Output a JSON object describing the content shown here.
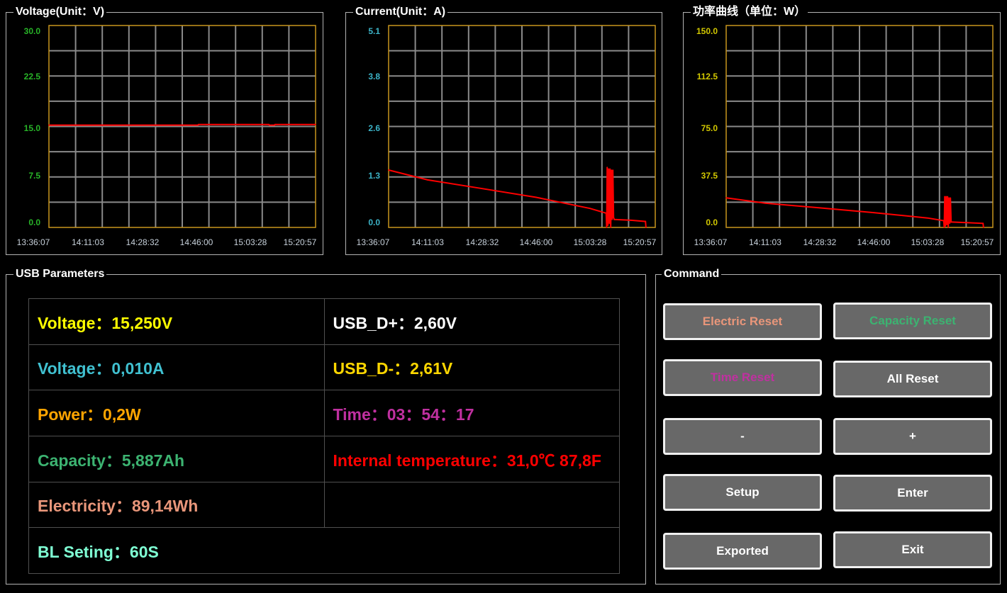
{
  "colors": {
    "plot_border": "#c8961e",
    "grid": "#8a8a8a",
    "line": "#ff0000",
    "x_tick": "#c8d2dc"
  },
  "chart_data": [
    {
      "type": "line",
      "title": "Voltage(Unit：V)",
      "ylim": [
        0,
        30
      ],
      "y_ticks": [
        "30.0",
        "22.5",
        "15.0",
        "7.5",
        "0.0"
      ],
      "x_ticks": [
        "13:36:07",
        "14:11:03",
        "14:28:32",
        "14:46:00",
        "15:03:28",
        "15:20:57"
      ],
      "grid": true,
      "tick_color": "#28b428",
      "series": [
        {
          "points": [
            [
              "13:46:00",
              15.2
            ],
            [
              "14:46:30",
              15.2
            ],
            [
              "14:46:40",
              15.3
            ],
            [
              "15:10:00",
              15.3
            ],
            [
              "15:10:10",
              15.2
            ],
            [
              "15:12:00",
              15.2
            ],
            [
              "15:12:10",
              15.3
            ],
            [
              "15:26:30",
              15.3
            ]
          ]
        }
      ]
    },
    {
      "type": "line",
      "title": "Current(Unit：A)",
      "ylim": [
        0,
        5.1
      ],
      "y_ticks": [
        "5.1",
        "3.8",
        "2.6",
        "1.3",
        "0.0"
      ],
      "x_ticks": [
        "13:36:07",
        "14:11:03",
        "14:28:32",
        "14:46:00",
        "15:03:28",
        "15:20:57"
      ],
      "grid": true,
      "tick_color": "#3cb4c8",
      "series": [
        {
          "points": [
            [
              "13:46:00",
              1.45
            ],
            [
              "14:11:03",
              1.2
            ],
            [
              "14:28:32",
              0.98
            ],
            [
              "14:46:00",
              0.76
            ],
            [
              "15:03:28",
              0.48
            ],
            [
              "15:09:10",
              0.36
            ],
            [
              "15:09:20",
              0.0
            ],
            [
              "15:09:30",
              1.52
            ],
            [
              "15:09:45",
              0.05
            ],
            [
              "15:10:00",
              1.48
            ],
            [
              "15:10:15",
              0.1
            ],
            [
              "15:10:30",
              1.48
            ],
            [
              "15:10:45",
              0.0
            ],
            [
              "15:11:00",
              1.45
            ],
            [
              "15:11:15",
              0.2
            ],
            [
              "15:11:30",
              1.45
            ],
            [
              "15:11:45",
              0.25
            ],
            [
              "15:12:00",
              0.2
            ],
            [
              "15:18:00",
              0.18
            ],
            [
              "15:23:00",
              0.15
            ],
            [
              "15:23:10",
              0.0
            ]
          ]
        }
      ]
    },
    {
      "type": "line",
      "title": "功率曲线（单位：W）",
      "ylim": [
        0,
        150
      ],
      "y_ticks": [
        "150.0",
        "112.5",
        "75.0",
        "37.5",
        "0.0"
      ],
      "x_ticks": [
        "13:36:07",
        "14:11:03",
        "14:28:32",
        "14:46:00",
        "15:03:28",
        "15:20:57"
      ],
      "grid": true,
      "tick_color": "#d2c800",
      "series": [
        {
          "points": [
            [
              "13:46:00",
              22
            ],
            [
              "14:11:03",
              18
            ],
            [
              "14:28:32",
              14.5
            ],
            [
              "14:46:00",
              11
            ],
            [
              "15:03:28",
              7
            ],
            [
              "15:09:10",
              5
            ],
            [
              "15:09:20",
              0.0
            ],
            [
              "15:09:30",
              23
            ],
            [
              "15:09:45",
              1
            ],
            [
              "15:10:00",
              23
            ],
            [
              "15:10:15",
              2
            ],
            [
              "15:10:30",
              23
            ],
            [
              "15:10:45",
              0
            ],
            [
              "15:11:00",
              22
            ],
            [
              "15:11:15",
              3
            ],
            [
              "15:11:30",
              22
            ],
            [
              "15:11:45",
              4
            ],
            [
              "15:12:00",
              4
            ],
            [
              "15:18:00",
              3.5
            ],
            [
              "15:23:00",
              3
            ],
            [
              "15:23:10",
              0.0
            ]
          ]
        }
      ]
    }
  ],
  "usb_parameters": {
    "title": "USB Parameters",
    "rows": [
      [
        {
          "text": "Voltage：15,250V",
          "color": "#ffff00"
        },
        {
          "text": "USB_D+：2,60V",
          "color": "#ffffff"
        }
      ],
      [
        {
          "text": "Voltage：0,010A",
          "color": "#40c0d0"
        },
        {
          "text": "USB_D-：2,61V",
          "color": "#ffd700"
        }
      ],
      [
        {
          "text": "Power：0,2W",
          "color": "#ffa500"
        },
        {
          "text": "Time：03：54：17",
          "color": "#c030a0"
        }
      ],
      [
        {
          "text": "Capacity：5,887Ah",
          "color": "#3cb371"
        },
        {
          "text": "Internal temperature：31,0℃ 87,8F",
          "color": "#ff0000"
        }
      ],
      [
        {
          "text": "Electricity：89,14Wh",
          "color": "#e9967a"
        },
        {
          "text": "",
          "color": "#ffffff"
        }
      ],
      [
        {
          "text": "BL Seting：60S",
          "color": "#7fffd4"
        }
      ]
    ]
  },
  "command": {
    "title": "Command",
    "buttons": [
      {
        "label": "Electric Reset",
        "color": "#e9967a"
      },
      {
        "label": "Capacity Reset",
        "color": "#3cb371"
      },
      {
        "label": "Time Reset",
        "color": "#c030a0"
      },
      {
        "label": "All Reset",
        "color": "#ffffff"
      },
      {
        "label": "-",
        "color": "#ffffff"
      },
      {
        "label": "+",
        "color": "#ffffff"
      },
      {
        "label": "Setup",
        "color": "#ffffff"
      },
      {
        "label": "Enter",
        "color": "#ffffff"
      },
      {
        "label": "Exported",
        "color": "#ffffff"
      },
      {
        "label": "Exit",
        "color": "#ffffff"
      }
    ]
  }
}
